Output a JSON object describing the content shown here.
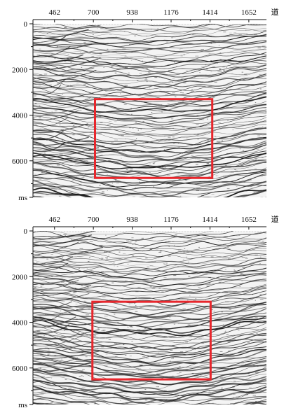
{
  "chart_data": [
    {
      "type": "seismic-section",
      "x_ticks": [
        462,
        700,
        938,
        1176,
        1414,
        1652
      ],
      "x_unit": "道",
      "y_ticks": [
        0,
        2000,
        4000,
        6000
      ],
      "y_unit": "ms",
      "xlim": [
        330,
        1760
      ],
      "ylim": [
        0,
        7600
      ],
      "highlight_box": {
        "x0": 710,
        "x1": 1428,
        "y0": 3300,
        "y1": 6750,
        "color": "#e8262c"
      }
    },
    {
      "type": "seismic-section",
      "x_ticks": [
        462,
        700,
        938,
        1176,
        1414,
        1652
      ],
      "x_unit": "道",
      "y_ticks": [
        0,
        2000,
        4000,
        6000
      ],
      "y_unit": "ms",
      "xlim": [
        330,
        1760
      ],
      "ylim": [
        0,
        7600
      ],
      "highlight_box": {
        "x0": 694,
        "x1": 1418,
        "y0": 3100,
        "y1": 6500,
        "color": "#e8262c"
      }
    }
  ]
}
